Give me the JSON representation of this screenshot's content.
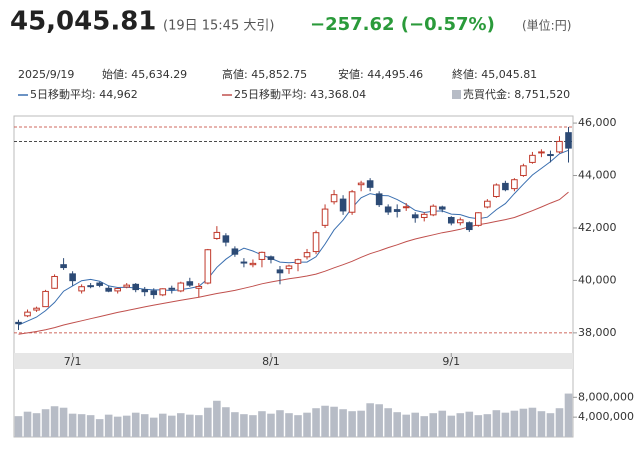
{
  "header": {
    "price": "45,045.81",
    "time": "(19日 15:45 大引)",
    "change": "−257.62 (−0.57%)",
    "unit": "(単位:円)"
  },
  "info": [
    "2025/9/19",
    "始値: 45,634.29",
    "高値: 45,852.75",
    "安値: 44,495.46",
    "終値: 45,045.81"
  ],
  "chart_data": {
    "type": "candlestick",
    "categories": [
      null,
      null,
      null,
      null,
      null,
      null,
      "7/1",
      null,
      null,
      null,
      null,
      null,
      null,
      null,
      null,
      null,
      null,
      null,
      null,
      null,
      null,
      null,
      null,
      null,
      null,
      null,
      null,
      null,
      "8/1",
      null,
      null,
      null,
      null,
      null,
      null,
      null,
      null,
      null,
      null,
      null,
      null,
      null,
      null,
      null,
      null,
      null,
      null,
      null,
      "9/1",
      null,
      null,
      null,
      null,
      null,
      null,
      null,
      null,
      null,
      null,
      null,
      null,
      null
    ],
    "open": [
      38400,
      38650,
      38870,
      39000,
      39700,
      40600,
      40250,
      39600,
      39800,
      39900,
      39700,
      39600,
      39750,
      39850,
      39650,
      39600,
      39450,
      39700,
      39600,
      39950,
      39700,
      39900,
      41600,
      41700,
      41200,
      40700,
      40600,
      40800,
      40900,
      40400,
      40450,
      40650,
      40900,
      41100,
      42100,
      43000,
      43100,
      42600,
      43650,
      43800,
      43300,
      42800,
      42700,
      42800,
      42500,
      42400,
      42500,
      42800,
      42400,
      42200,
      42200,
      42100,
      42800,
      43200,
      43700,
      43500,
      44000,
      44500,
      44900,
      44800,
      44900,
      45634.29
    ],
    "high": [
      38500,
      38890,
      39000,
      39640,
      40230,
      40850,
      40350,
      39850,
      39900,
      39950,
      39800,
      39720,
      39900,
      39900,
      39750,
      39700,
      39700,
      39800,
      39950,
      40100,
      39900,
      41200,
      42070,
      41800,
      41300,
      40850,
      40800,
      41100,
      40950,
      40550,
      40600,
      40830,
      41200,
      41900,
      42900,
      43450,
      43250,
      43450,
      43800,
      43900,
      43400,
      42900,
      42900,
      42950,
      42600,
      42600,
      42900,
      42850,
      42450,
      42400,
      42250,
      42600,
      43100,
      43700,
      43800,
      43900,
      44450,
      44900,
      45000,
      44950,
      45500,
      45852.75
    ],
    "low": [
      38110,
      38600,
      38800,
      38990,
      39680,
      40400,
      39800,
      39500,
      39700,
      39740,
      39550,
      39500,
      39700,
      39550,
      39400,
      39300,
      39400,
      39500,
      39550,
      39750,
      39350,
      39850,
      41550,
      41300,
      40900,
      40500,
      40500,
      40500,
      40650,
      39850,
      40250,
      40350,
      40800,
      41000,
      42000,
      42900,
      42500,
      42500,
      43400,
      43400,
      42800,
      42500,
      42400,
      42650,
      42200,
      42250,
      42450,
      42600,
      42100,
      42100,
      41850,
      42050,
      42750,
      43150,
      43400,
      43400,
      43950,
      44450,
      44700,
      44500,
      44850,
      44495.46
    ],
    "close": [
      38350,
      38790,
      38940,
      39580,
      40150,
      40490,
      39990,
      39760,
      39790,
      39810,
      39590,
      39690,
      39820,
      39650,
      39570,
      39460,
      39680,
      39660,
      39900,
      39820,
      39770,
      41170,
      41830,
      41460,
      41000,
      40670,
      40650,
      41070,
      40800,
      40290,
      40550,
      40790,
      41060,
      41820,
      42720,
      43270,
      42650,
      43380,
      43710,
      43550,
      42890,
      42610,
      42630,
      42810,
      42390,
      42520,
      42830,
      42720,
      42190,
      42310,
      41940,
      42580,
      43020,
      43640,
      43460,
      43840,
      44370,
      44770,
      44900,
      44790,
      45300,
      45045.81
    ],
    "up_color": "#c0392b",
    "down_color": "#2c4a75",
    "ylim": [
      37270,
      46270
    ],
    "yticks": [
      {
        "value": 38000,
        "label": "38,000"
      },
      {
        "value": 40000,
        "label": "40,000"
      },
      {
        "value": 42000,
        "label": "42,000"
      },
      {
        "value": 44000,
        "label": "44,000"
      },
      {
        "value": 46000,
        "label": "46,000"
      }
    ],
    "ref_lines": [
      {
        "value": 45850,
        "color": "#c0392b"
      },
      {
        "value": 45300,
        "color": "#333333"
      },
      {
        "value": 38000,
        "color": "#c0392b"
      }
    ],
    "series": [
      {
        "name": "5日移動平均: 44,962",
        "color": "#3a6fb0",
        "values": [
          38300,
          38450,
          38600,
          38850,
          39160,
          39590,
          39790,
          39990,
          40040,
          39970,
          39790,
          39730,
          39740,
          39710,
          39660,
          39640,
          39640,
          39610,
          39650,
          39700,
          39770,
          40060,
          40500,
          40810,
          41050,
          41230,
          41120,
          40970,
          40840,
          40700,
          40670,
          40700,
          40700,
          40900,
          41390,
          41930,
          42300,
          42770,
          43150,
          43310,
          43240,
          43230,
          43080,
          42900,
          42670,
          42590,
          42640,
          42650,
          42530,
          42510,
          42400,
          42350,
          42410,
          42700,
          42930,
          43310,
          43670,
          44020,
          44270,
          44530,
          44830,
          44962
        ]
      },
      {
        "name": "25日移動平均: 43,368.04",
        "color": "#c0504d",
        "values": [
          37950,
          38000,
          38050,
          38120,
          38200,
          38300,
          38380,
          38460,
          38540,
          38620,
          38700,
          38780,
          38850,
          38920,
          38990,
          39060,
          39120,
          39180,
          39240,
          39300,
          39360,
          39430,
          39500,
          39560,
          39620,
          39700,
          39780,
          39870,
          39940,
          40000,
          40060,
          40110,
          40170,
          40240,
          40350,
          40480,
          40600,
          40730,
          40880,
          41020,
          41130,
          41250,
          41360,
          41480,
          41580,
          41660,
          41740,
          41820,
          41880,
          41950,
          42050,
          42120,
          42180,
          42250,
          42320,
          42400,
          42530,
          42660,
          42800,
          42950,
          43080,
          43368.04
        ]
      }
    ],
    "volume": {
      "name": "売買代金: 8,751,520",
      "color": "#b7bcc6",
      "values": [
        4200000,
        5100000,
        4800000,
        5600000,
        6200000,
        5900000,
        4700000,
        4600000,
        4400000,
        3600000,
        4500000,
        4100000,
        4300000,
        4900000,
        4600000,
        3900000,
        4700000,
        4300000,
        4800000,
        4500000,
        4400000,
        5900000,
        7300000,
        6000000,
        5000000,
        4600000,
        4400000,
        5200000,
        4700000,
        5400000,
        4800000,
        4400000,
        4900000,
        5800000,
        6300000,
        6100000,
        5600000,
        5200000,
        5300000,
        6800000,
        6600000,
        5800000,
        5000000,
        4500000,
        4900000,
        4200000,
        4800000,
        5300000,
        4300000,
        4800000,
        5100000,
        4400000,
        4600000,
        5400000,
        4900000,
        5300000,
        5700000,
        5900000,
        5200000,
        4800000,
        5800000,
        8751520
      ],
      "ylim": [
        0,
        13500000
      ],
      "yticks": [
        {
          "value": 4000000,
          "label": "4,000,000"
        },
        {
          "value": 8000000,
          "label": "8,000,000"
        }
      ]
    }
  }
}
